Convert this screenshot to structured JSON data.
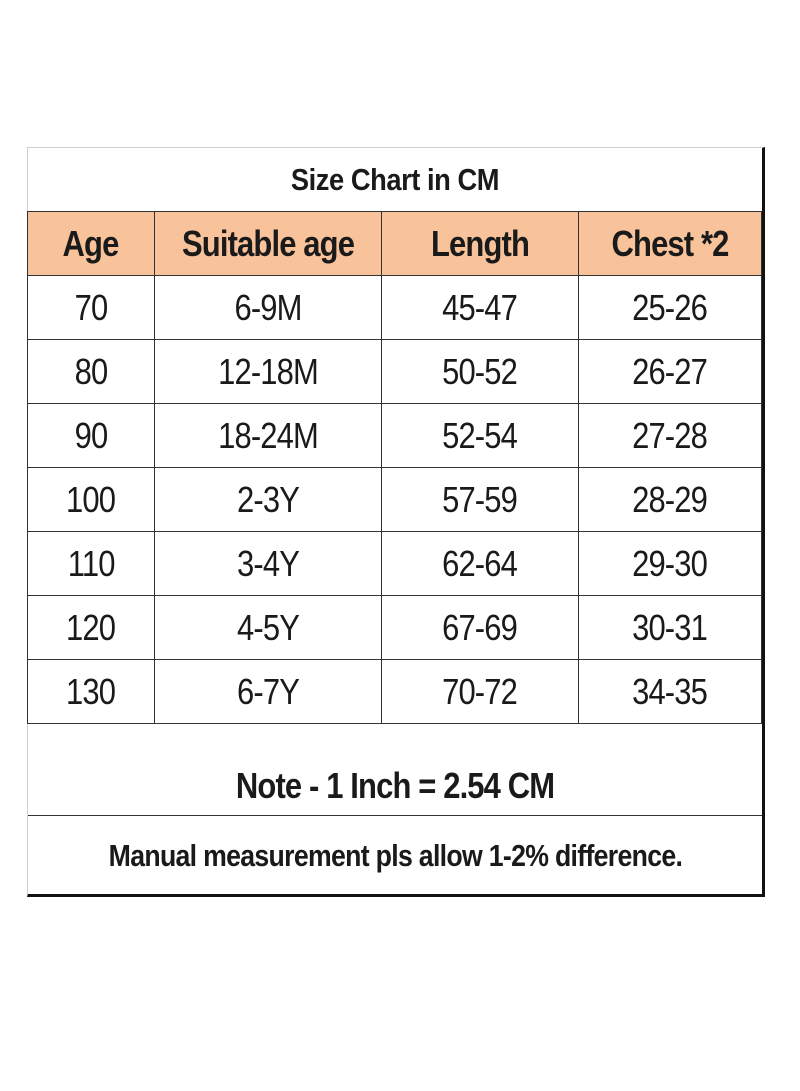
{
  "title": "Size Chart in CM",
  "headers": {
    "age": "Age",
    "suitable_age": "Suitable age",
    "length": "Length",
    "chest": "Chest *2"
  },
  "rows": [
    {
      "age": "70",
      "suitable_age": "6-9M",
      "length": "45-47",
      "chest": "25-26"
    },
    {
      "age": "80",
      "suitable_age": "12-18M",
      "length": "50-52",
      "chest": "26-27"
    },
    {
      "age": "90",
      "suitable_age": "18-24M",
      "length": "52-54",
      "chest": "27-28"
    },
    {
      "age": "100",
      "suitable_age": "2-3Y",
      "length": "57-59",
      "chest": "28-29"
    },
    {
      "age": "110",
      "suitable_age": "3-4Y",
      "length": "62-64",
      "chest": "29-30"
    },
    {
      "age": "120",
      "suitable_age": "4-5Y",
      "length": "67-69",
      "chest": "30-31"
    },
    {
      "age": "130",
      "suitable_age": "6-7Y",
      "length": "70-72",
      "chest": "34-35"
    }
  ],
  "note": "Note - 1 Inch = 2.54 CM",
  "footer": "Manual measurement pls allow 1-2% difference.",
  "colors": {
    "header_background": "#f8c29a",
    "grid_lines": "#333333"
  }
}
